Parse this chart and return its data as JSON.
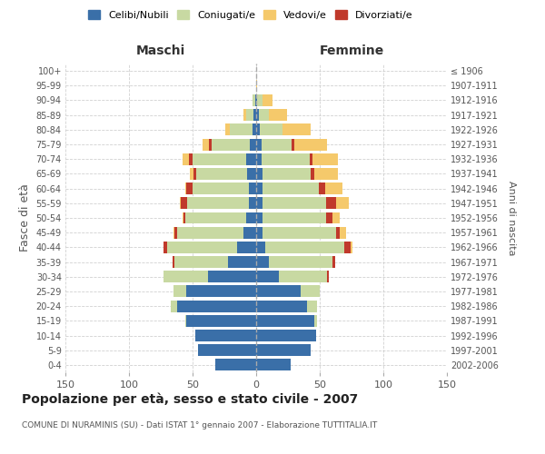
{
  "age_groups": [
    "0-4",
    "5-9",
    "10-14",
    "15-19",
    "20-24",
    "25-29",
    "30-34",
    "35-39",
    "40-44",
    "45-49",
    "50-54",
    "55-59",
    "60-64",
    "65-69",
    "70-74",
    "75-79",
    "80-84",
    "85-89",
    "90-94",
    "95-99",
    "100+"
  ],
  "birth_years": [
    "2002-2006",
    "1997-2001",
    "1992-1996",
    "1987-1991",
    "1982-1986",
    "1977-1981",
    "1972-1976",
    "1967-1971",
    "1962-1966",
    "1957-1961",
    "1952-1956",
    "1947-1951",
    "1942-1946",
    "1937-1941",
    "1932-1936",
    "1927-1931",
    "1922-1926",
    "1917-1921",
    "1912-1916",
    "1907-1911",
    "≤ 1906"
  ],
  "male_celibi": [
    32,
    46,
    48,
    55,
    62,
    55,
    38,
    22,
    15,
    10,
    8,
    6,
    6,
    7,
    8,
    5,
    3,
    2,
    1,
    0,
    0
  ],
  "male_coniugati": [
    0,
    0,
    0,
    1,
    5,
    10,
    35,
    42,
    55,
    52,
    48,
    48,
    44,
    40,
    42,
    30,
    18,
    6,
    2,
    0,
    0
  ],
  "male_vedovi": [
    0,
    0,
    0,
    0,
    0,
    0,
    0,
    0,
    0,
    1,
    1,
    1,
    1,
    3,
    5,
    5,
    3,
    2,
    0,
    0,
    0
  ],
  "male_divorziati": [
    0,
    0,
    0,
    0,
    0,
    0,
    0,
    2,
    3,
    2,
    1,
    5,
    5,
    2,
    3,
    2,
    0,
    0,
    0,
    0,
    0
  ],
  "fem_nubili": [
    27,
    43,
    47,
    46,
    40,
    35,
    18,
    10,
    7,
    5,
    5,
    5,
    5,
    5,
    4,
    4,
    3,
    2,
    1,
    0,
    0
  ],
  "fem_coniugate": [
    0,
    0,
    0,
    2,
    8,
    15,
    38,
    50,
    62,
    58,
    50,
    50,
    44,
    38,
    38,
    24,
    18,
    8,
    4,
    0,
    0
  ],
  "fem_vedove": [
    0,
    0,
    0,
    0,
    0,
    0,
    0,
    0,
    2,
    5,
    6,
    10,
    14,
    18,
    20,
    26,
    22,
    14,
    8,
    1,
    0
  ],
  "fem_divorziate": [
    0,
    0,
    0,
    0,
    0,
    0,
    1,
    2,
    5,
    3,
    5,
    8,
    5,
    3,
    2,
    2,
    0,
    0,
    0,
    0,
    0
  ],
  "color_celibi": "#3a6fa8",
  "color_coniugati": "#c8d9a2",
  "color_vedovi": "#f5c96b",
  "color_divorziati": "#c0392b",
  "xlim": 150,
  "title": "Popolazione per età, sesso e stato civile - 2007",
  "subtitle": "COMUNE DI NURAMINIS (SU) - Dati ISTAT 1° gennaio 2007 - Elaborazione TUTTITALIA.IT",
  "ylabel_left": "Fasce di età",
  "ylabel_right": "Anni di nascita",
  "label_maschi": "Maschi",
  "label_femmine": "Femmine",
  "legend_labels": [
    "Celibi/Nubili",
    "Coniugati/e",
    "Vedovi/e",
    "Divorziati/e"
  ],
  "bg_color": "#ffffff",
  "grid_color": "#cccccc"
}
